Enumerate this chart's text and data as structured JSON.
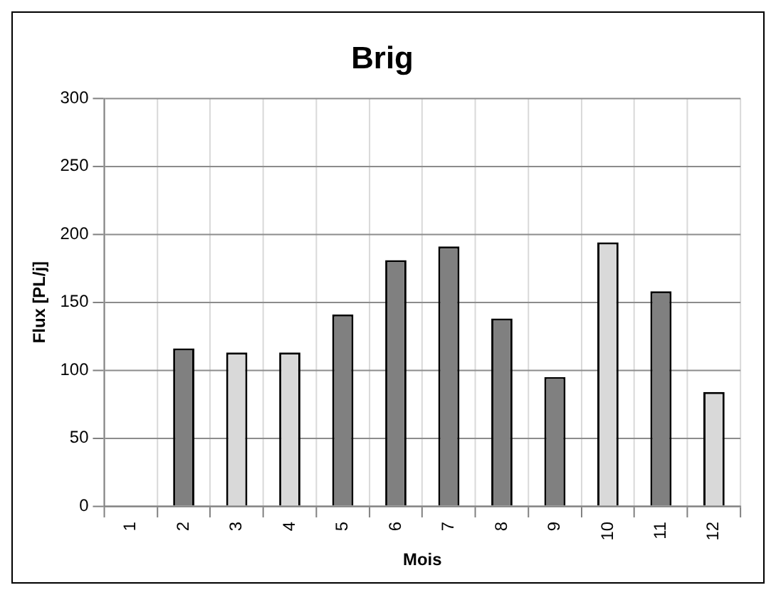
{
  "chart_data": {
    "type": "bar",
    "title": "Brig",
    "xlabel": "Mois",
    "ylabel": "Flux [PL/j]",
    "categories": [
      "1",
      "2",
      "3",
      "4",
      "5",
      "6",
      "7",
      "8",
      "9",
      "10",
      "11",
      "12"
    ],
    "values": [
      null,
      116,
      113,
      113,
      141,
      181,
      191,
      138,
      95,
      194,
      158,
      84
    ],
    "colors": [
      "#808080",
      "#808080",
      "#d9d9d9",
      "#d9d9d9",
      "#808080",
      "#808080",
      "#808080",
      "#808080",
      "#808080",
      "#d9d9d9",
      "#808080",
      "#d9d9d9"
    ],
    "ylim": [
      0,
      300
    ],
    "yticks": [
      0,
      50,
      100,
      150,
      200,
      250,
      300
    ],
    "grid": true,
    "legend": false
  }
}
